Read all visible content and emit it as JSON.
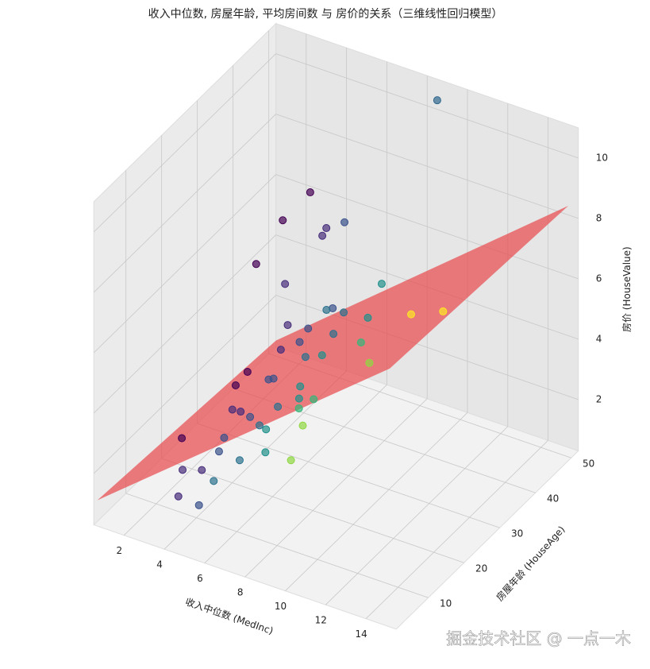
{
  "chart_data": {
    "type": "scatter3d",
    "title": "收入中位数, 房屋年龄, 平均房间数 与 房价的关系（三维线性回归模型）",
    "xlabel": "收入中位数 (MedInc)",
    "ylabel": "房屋年龄 (HouseAge)",
    "zlabel": "房价 (HouseValue)",
    "xlim": [
      0.5,
      15.5
    ],
    "ylim": [
      1,
      52
    ],
    "zlim": [
      0.3,
      11
    ],
    "xticks": [
      2,
      4,
      6,
      8,
      10,
      12,
      14
    ],
    "yticks": [
      10,
      20,
      30,
      40,
      50
    ],
    "zticks": [
      2,
      4,
      6,
      8,
      10
    ],
    "grid": true,
    "points": {
      "x": [
        1.5,
        2.1,
        2.5,
        3.0,
        3.2,
        3.5,
        3.8,
        4.0,
        4.2,
        4.5,
        4.8,
        5.0,
        5.3,
        5.6,
        6.0,
        6.3,
        6.8,
        7.2,
        7.8,
        8.5,
        2.8,
        3.6,
        4.4,
        5.2,
        6.1,
        3.1,
        2.4,
        1.9,
        4.9,
        5.8,
        3.3,
        3.9,
        4.6,
        5.5,
        2.2,
        15.0,
        8.5,
        7.5,
        9.5,
        3.4,
        2.6,
        4.1,
        5.1,
        6.6,
        3.7,
        2.9,
        4.3,
        5.9,
        3.0,
        2.0
      ],
      "y": [
        20,
        35,
        44,
        28,
        16,
        33,
        40,
        25,
        47,
        12,
        36,
        22,
        41,
        30,
        18,
        45,
        27,
        38,
        15,
        33,
        52,
        20,
        39,
        26,
        50,
        10,
        30,
        46,
        17,
        35,
        24,
        52,
        43,
        21,
        52,
        8,
        52,
        20,
        48,
        37,
        14,
        31,
        45,
        24,
        18,
        41,
        9,
        28,
        52,
        38
      ],
      "z": [
        1.2,
        1.8,
        2.4,
        1.5,
        1.0,
        2.1,
        2.6,
        1.9,
        3.0,
        1.4,
        2.8,
        2.2,
        3.1,
        2.7,
        2.0,
        3.4,
        2.9,
        3.6,
        2.5,
        3.8,
        4.5,
        1.7,
        3.3,
        2.4,
        3.9,
        0.8,
        2.0,
        5.5,
        1.6,
        3.2,
        2.1,
        5.2,
        3.5,
        2.3,
        5.8,
        9.8,
        10.3,
        3.0,
        4.0,
        2.6,
        1.1,
        2.5,
        3.3,
        2.9,
        1.5,
        4.2,
        0.9,
        2.6,
        4.8,
        5.0
      ],
      "colors": [
        "#440154",
        "#440154",
        "#472d7b",
        "#472d7b",
        "#472d7b",
        "#3b528b",
        "#3b528b",
        "#3b528b",
        "#3b528b",
        "#2c728e",
        "#2c728e",
        "#2c728e",
        "#2c728e",
        "#21918c",
        "#21918c",
        "#21918c",
        "#35b779",
        "#35b779",
        "#90d743",
        "#90d743",
        "#472d7b",
        "#3b528b",
        "#3b528b",
        "#2c728e",
        "#21918c",
        "#472d7b",
        "#440154",
        "#440154",
        "#2c728e",
        "#21918c",
        "#472d7b",
        "#3b528b",
        "#2c728e",
        "#21918c",
        "#440154",
        "#fde725",
        "#31688e",
        "#90d743",
        "#fde725",
        "#472d7b",
        "#472d7b",
        "#3b528b",
        "#2c728e",
        "#35b779",
        "#3b528b",
        "#472d7b",
        "#3b528b",
        "#21918c",
        "#472d7b",
        "#440154"
      ]
    },
    "surface": {
      "x": [
        0.5,
        15
      ],
      "y": [
        2,
        52
      ],
      "z": [
        [
          1.0,
          0.5
        ],
        [
          8.7,
          8.3
        ]
      ],
      "color": "#e8474c"
    },
    "watermark": "掘金技术社区 @ 一点一木"
  }
}
